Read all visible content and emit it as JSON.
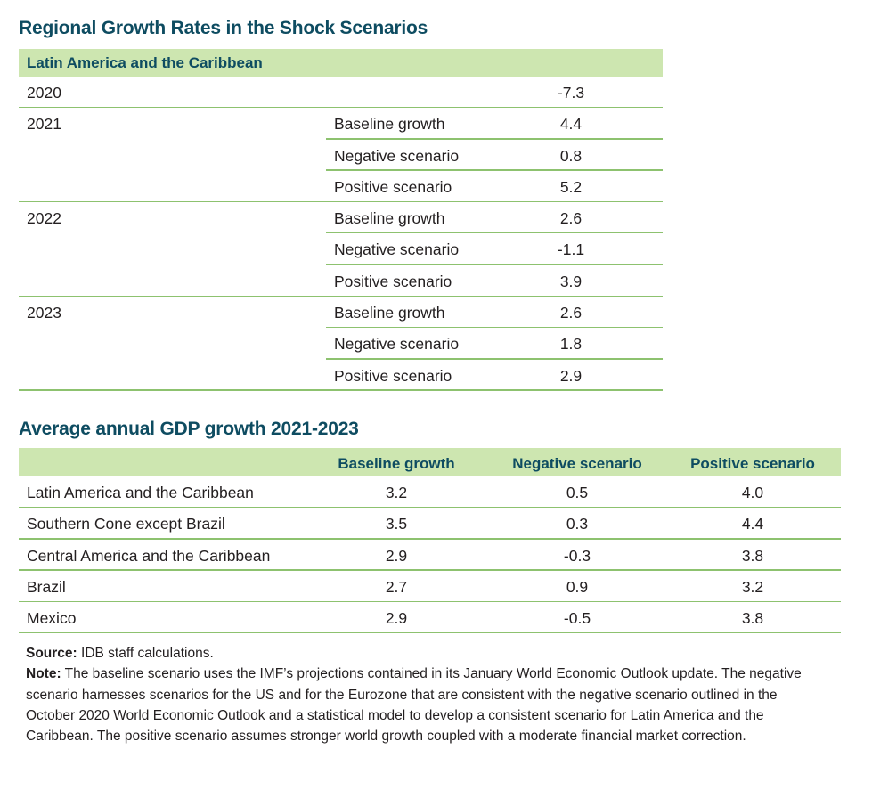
{
  "table1": {
    "title": "Regional Growth Rates in the Shock Scenarios",
    "region": "Latin America and the Caribbean",
    "rows": [
      {
        "year": "2020",
        "scenario": "",
        "value": "-7.3"
      },
      {
        "year": "2021",
        "scenario": "Baseline growth",
        "value": "4.4"
      },
      {
        "year": "",
        "scenario": "Negative scenario",
        "value": "0.8"
      },
      {
        "year": "",
        "scenario": "Positive scenario",
        "value": "5.2"
      },
      {
        "year": "2022",
        "scenario": "Baseline growth",
        "value": "2.6"
      },
      {
        "year": "",
        "scenario": "Negative scenario",
        "value": "-1.1"
      },
      {
        "year": "",
        "scenario": "Positive scenario",
        "value": "3.9"
      },
      {
        "year": "2023",
        "scenario": "Baseline growth",
        "value": "2.6"
      },
      {
        "year": "",
        "scenario": "Negative scenario",
        "value": "1.8"
      },
      {
        "year": "",
        "scenario": "Positive scenario",
        "value": "2.9"
      }
    ]
  },
  "table2": {
    "title": "Average annual GDP growth 2021-2023",
    "headers": [
      "Baseline growth",
      "Negative scenario",
      "Positive scenario"
    ],
    "rows": [
      {
        "name": "Latin America and the Caribbean",
        "baseline": "3.2",
        "negative": "0.5",
        "positive": "4.0"
      },
      {
        "name": "Southern Cone except Brazil",
        "baseline": "3.5",
        "negative": "0.3",
        "positive": "4.4"
      },
      {
        "name": "Central America and the Caribbean",
        "baseline": "2.9",
        "negative": "-0.3",
        "positive": "3.8"
      },
      {
        "name": "Brazil",
        "baseline": "2.7",
        "negative": "0.9",
        "positive": "3.2"
      },
      {
        "name": "Mexico",
        "baseline": "2.9",
        "negative": "-0.5",
        "positive": "3.8"
      }
    ]
  },
  "notes": {
    "source_label": "Source:",
    "source_text": " IDB staff calculations.",
    "note_label": "Note:",
    "note_text": " The baseline scenario uses the IMF’s projections contained in its January World Economic Outlook update. The negative scenario harnesses scenarios for the US and for the Eurozone that are consistent with the negative scenario outlined in the October 2020 World Economic Outlook and a statistical model to develop a consistent scenario for Latin America and the Caribbean. The positive scenario assumes stronger world growth coupled with a moderate financial market correction."
  }
}
